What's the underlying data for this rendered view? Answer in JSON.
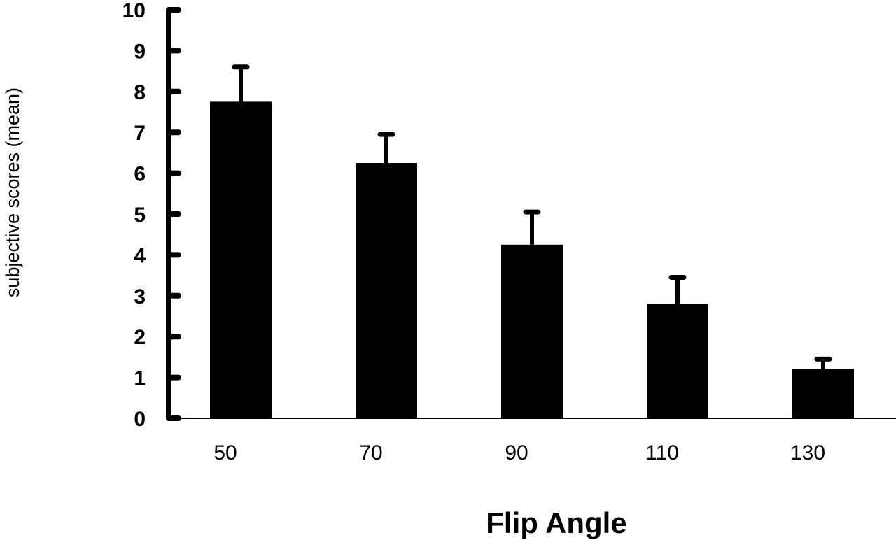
{
  "chart_data": {
    "type": "bar",
    "title": "",
    "xlabel": "Flip Angle",
    "ylabel": "subjective scores (mean)",
    "categories": [
      "50",
      "70",
      "90",
      "110",
      "130"
    ],
    "series": [
      {
        "values": [
          7.75,
          6.25,
          4.25,
          2.8,
          1.2
        ],
        "error_upper": [
          8.6,
          6.95,
          5.05,
          3.45,
          1.45
        ]
      }
    ],
    "ylim": [
      0,
      10
    ],
    "yticks": [
      "0",
      "1",
      "2",
      "3",
      "4",
      "5",
      "6",
      "7",
      "8",
      "9",
      "10"
    ],
    "grid": false,
    "legend": "none",
    "colors": {
      "bar": "#000000",
      "axis": "#000000"
    }
  }
}
